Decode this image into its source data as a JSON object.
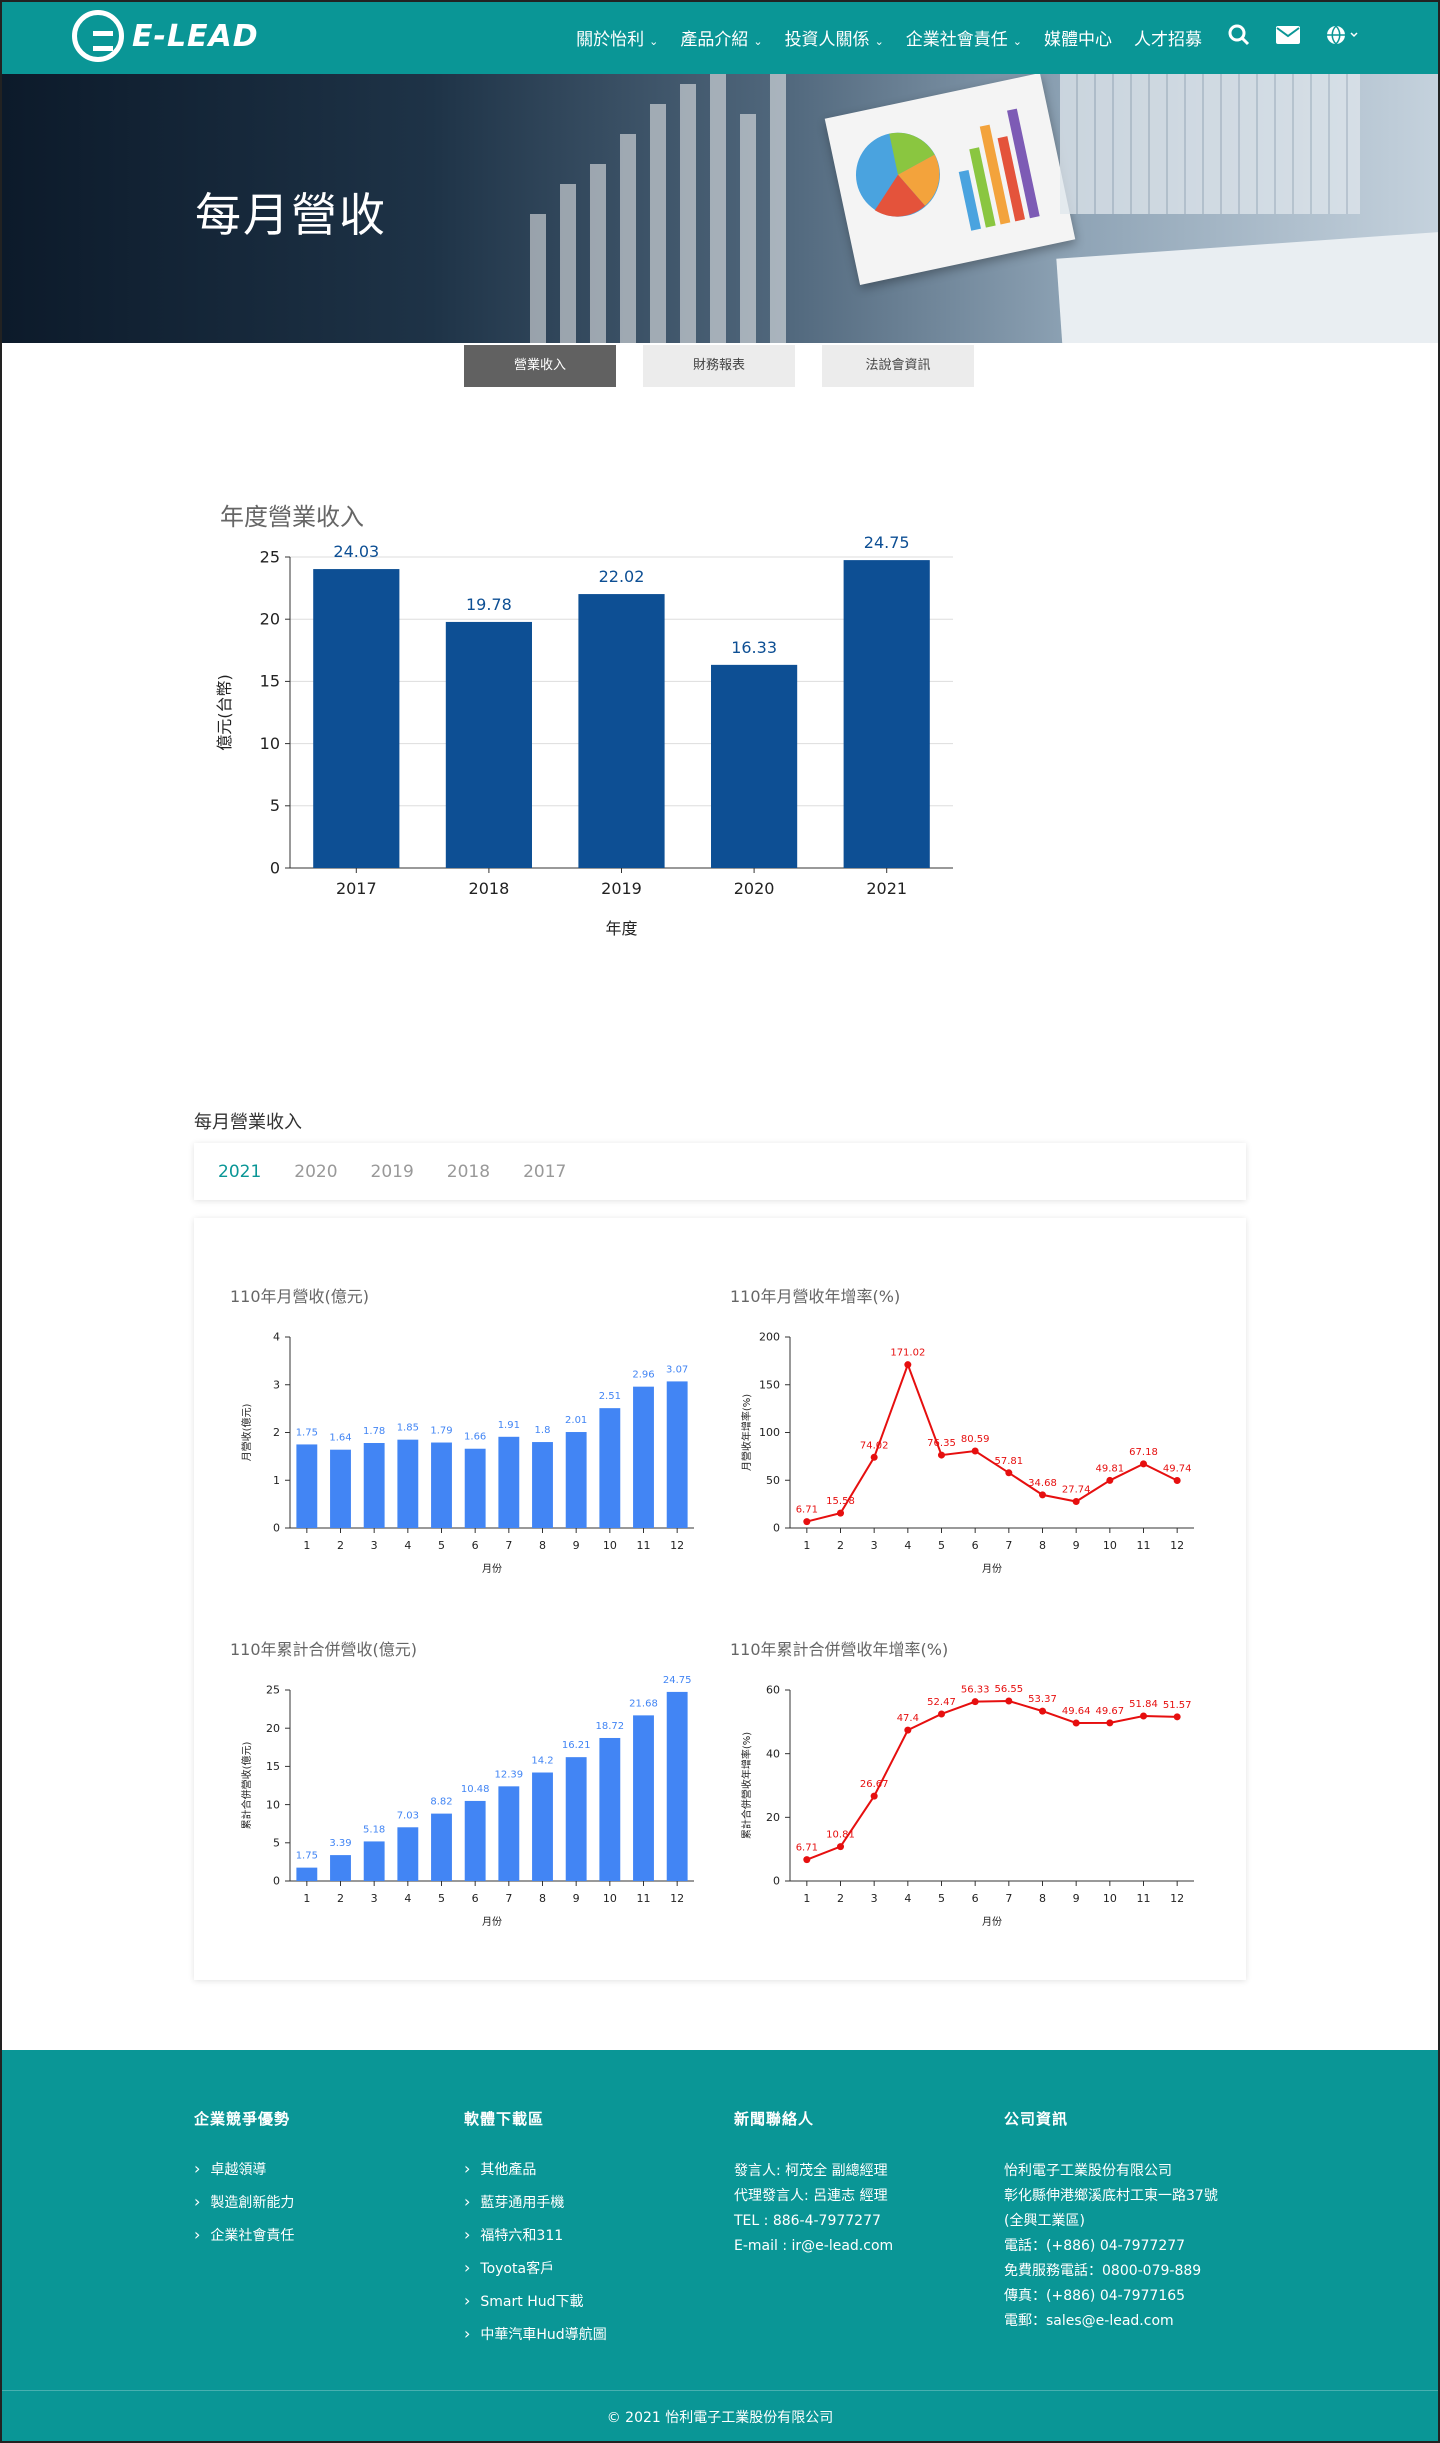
{
  "header": {
    "logo_text": "E-LEAD",
    "nav": [
      {
        "label": "關於怡利",
        "has_dropdown": true
      },
      {
        "label": "產品介紹",
        "has_dropdown": true
      },
      {
        "label": "投資人關係",
        "has_dropdown": true
      },
      {
        "label": "企業社會責任",
        "has_dropdown": true
      },
      {
        "label": "媒體中心",
        "has_dropdown": false
      },
      {
        "label": "人才招募",
        "has_dropdown": false
      }
    ],
    "icons": [
      "search-icon",
      "mail-icon",
      "globe-icon"
    ]
  },
  "hero": {
    "title": "每月營收"
  },
  "subtabs": [
    {
      "label": "營業收入",
      "active": true
    },
    {
      "label": "財務報表",
      "active": false
    },
    {
      "label": "法說會資訊",
      "active": false
    }
  ],
  "colors": {
    "brand": "#0a9696",
    "bar_dark": "#0d4f94",
    "bar_light": "#4285f4",
    "line_red": "#e60f0f"
  },
  "annual_chart": {
    "chart_data": {
      "type": "bar",
      "title": "年度營業收入",
      "categories": [
        "2017",
        "2018",
        "2019",
        "2020",
        "2021"
      ],
      "values": [
        24.03,
        19.78,
        22.02,
        16.33,
        24.75
      ],
      "xlabel": "年度",
      "ylabel": "億元(台幣)",
      "ylim": [
        0,
        25
      ],
      "yticks": [
        0,
        5,
        10,
        15,
        20,
        25
      ],
      "grid": true
    }
  },
  "monthly": {
    "title": "每月營業收入",
    "year_tabs": [
      {
        "label": "2021",
        "active": true
      },
      {
        "label": "2020",
        "active": false
      },
      {
        "label": "2019",
        "active": false
      },
      {
        "label": "2018",
        "active": false
      },
      {
        "label": "2017",
        "active": false
      }
    ],
    "chart_data": [
      {
        "type": "bar",
        "title": "110年月營收(億元)",
        "xlabel": "月份",
        "ylabel": "月營收(億元)",
        "categories": [
          "1",
          "2",
          "3",
          "4",
          "5",
          "6",
          "7",
          "8",
          "9",
          "10",
          "11",
          "12"
        ],
        "values": [
          1.75,
          1.64,
          1.78,
          1.85,
          1.79,
          1.66,
          1.91,
          1.8,
          2.01,
          2.51,
          2.96,
          3.07
        ],
        "ylim": [
          0,
          4
        ],
        "yticks": [
          0,
          1,
          2,
          3,
          4
        ]
      },
      {
        "type": "line",
        "title": "110年月營收年增率(%)",
        "xlabel": "月份",
        "ylabel": "月營收年增率(%)",
        "categories": [
          "1",
          "2",
          "3",
          "4",
          "5",
          "6",
          "7",
          "8",
          "9",
          "10",
          "11",
          "12"
        ],
        "values": [
          6.71,
          15.58,
          74.02,
          171.02,
          76.35,
          80.59,
          57.81,
          34.68,
          27.74,
          49.81,
          67.18,
          49.74
        ],
        "ylim": [
          0,
          200
        ],
        "yticks": [
          0,
          50,
          100,
          150,
          200
        ]
      },
      {
        "type": "bar",
        "title": "110年累計合併營收(億元)",
        "xlabel": "月份",
        "ylabel": "累計合併營收(億元)",
        "categories": [
          "1",
          "2",
          "3",
          "4",
          "5",
          "6",
          "7",
          "8",
          "9",
          "10",
          "11",
          "12"
        ],
        "values": [
          1.75,
          3.39,
          5.18,
          7.03,
          8.82,
          10.48,
          12.39,
          14.2,
          16.21,
          18.72,
          21.68,
          24.75
        ],
        "ylim": [
          0,
          25
        ],
        "yticks": [
          0,
          5,
          10,
          15,
          20,
          25
        ]
      },
      {
        "type": "line",
        "title": "110年累計合併營收年增率(%)",
        "xlabel": "月份",
        "ylabel": "累計合併營收年增率(%)",
        "categories": [
          "1",
          "2",
          "3",
          "4",
          "5",
          "6",
          "7",
          "8",
          "9",
          "10",
          "11",
          "12"
        ],
        "values": [
          6.71,
          10.81,
          26.67,
          47.4,
          52.47,
          56.33,
          56.55,
          53.37,
          49.64,
          49.67,
          51.84,
          51.57
        ],
        "ylim": [
          0,
          60
        ],
        "yticks": [
          0,
          20,
          40,
          60
        ]
      }
    ]
  },
  "footer": {
    "col1": {
      "title": "企業競爭優勢",
      "items": [
        "卓越領導",
        "製造創新能力",
        "企業社會責任"
      ]
    },
    "col2": {
      "title": "軟體下載區",
      "items": [
        "其他產品",
        "藍芽通用手機",
        "福特六和311",
        "Toyota客戶",
        "Smart Hud下載",
        "中華汽車Hud導航圖"
      ]
    },
    "col3": {
      "title": "新聞聯絡人",
      "lines": [
        "發言人: 柯茂全 副總經理",
        "代理發言人: 呂連志 經理",
        "TEL : 886-4-7977277",
        "E-mail : ir@e-lead.com"
      ]
    },
    "col4": {
      "title": "公司資訊",
      "lines": [
        "怡利電子工業股份有限公司",
        "彰化縣伸港鄉溪底村工東一路37號",
        "(全興工業區)",
        "電話：(+886) 04-7977277",
        "免費服務電話：0800-079-889",
        "傳真：(+886) 04-7977165",
        "電郵：sales@e-lead.com"
      ]
    },
    "copyright": "© 2021 怡利電子工業股份有限公司"
  }
}
